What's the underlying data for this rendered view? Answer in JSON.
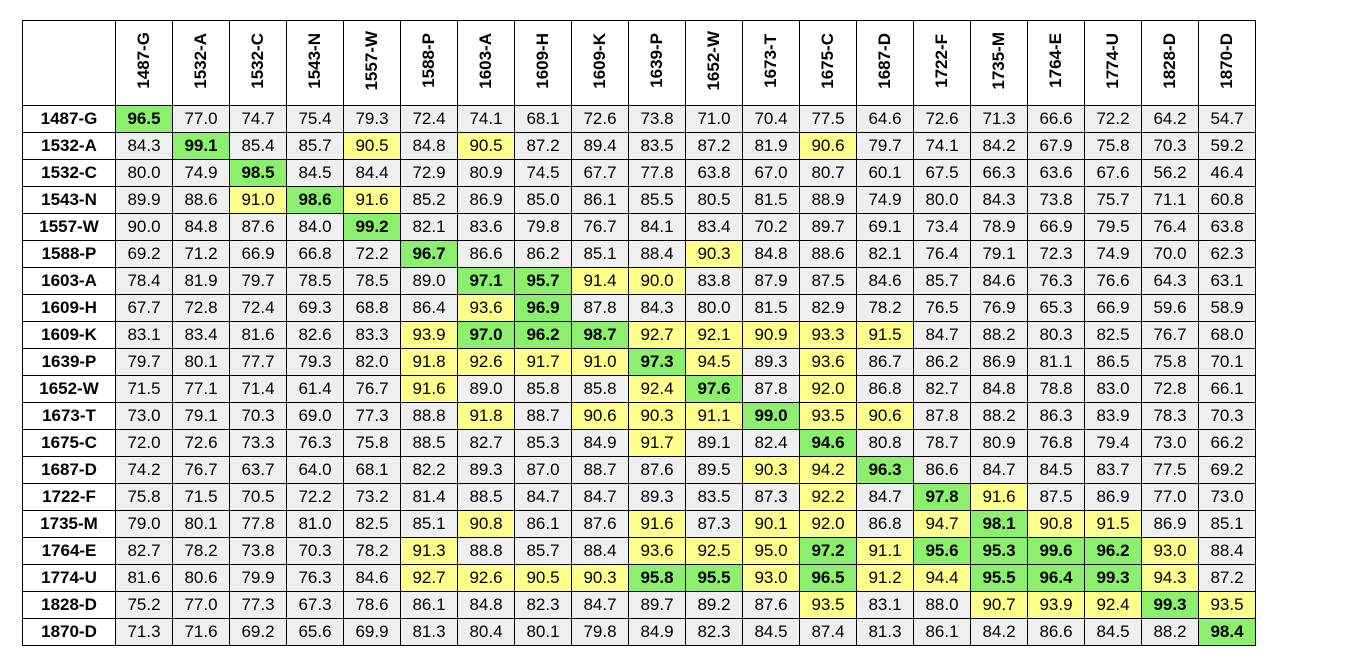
{
  "chart_data": {
    "type": "heatmap",
    "title": "",
    "columns": [
      "1487-G",
      "1532-A",
      "1532-C",
      "1543-N",
      "1557-W",
      "1588-P",
      "1603-A",
      "1609-H",
      "1609-K",
      "1639-P",
      "1652-W",
      "1673-T",
      "1675-C",
      "1687-D",
      "1722-F",
      "1735-M",
      "1764-E",
      "1774-U",
      "1828-D",
      "1870-D"
    ],
    "rows": [
      "1487-G",
      "1532-A",
      "1532-C",
      "1543-N",
      "1557-W",
      "1588-P",
      "1603-A",
      "1609-H",
      "1609-K",
      "1639-P",
      "1652-W",
      "1673-T",
      "1675-C",
      "1687-D",
      "1722-F",
      "1735-M",
      "1764-E",
      "1774-U",
      "1828-D",
      "1870-D"
    ],
    "values": [
      [
        "96.5",
        "77.0",
        "74.7",
        "75.4",
        "79.3",
        "72.4",
        "74.1",
        "68.1",
        "72.6",
        "73.8",
        "71.0",
        "70.4",
        "77.5",
        "64.6",
        "72.6",
        "71.3",
        "66.6",
        "72.2",
        "64.2",
        "54.7"
      ],
      [
        "84.3",
        "99.1",
        "85.4",
        "85.7",
        "90.5",
        "84.8",
        "90.5",
        "87.2",
        "89.4",
        "83.5",
        "87.2",
        "81.9",
        "90.6",
        "79.7",
        "74.1",
        "84.2",
        "67.9",
        "75.8",
        "70.3",
        "59.2"
      ],
      [
        "80.0",
        "74.9",
        "98.5",
        "84.5",
        "84.4",
        "72.9",
        "80.9",
        "74.5",
        "67.7",
        "77.8",
        "63.8",
        "67.0",
        "80.7",
        "60.1",
        "67.5",
        "66.3",
        "63.6",
        "67.6",
        "56.2",
        "46.4"
      ],
      [
        "89.9",
        "88.6",
        "91.0",
        "98.6",
        "91.6",
        "85.2",
        "86.9",
        "85.0",
        "86.1",
        "85.5",
        "80.5",
        "81.5",
        "88.9",
        "74.9",
        "80.0",
        "84.3",
        "73.8",
        "75.7",
        "71.1",
        "60.8"
      ],
      [
        "90.0",
        "84.8",
        "87.6",
        "84.0",
        "99.2",
        "82.1",
        "83.6",
        "79.8",
        "76.7",
        "84.1",
        "83.4",
        "70.2",
        "89.7",
        "69.1",
        "73.4",
        "78.9",
        "66.9",
        "79.5",
        "76.4",
        "63.8"
      ],
      [
        "69.2",
        "71.2",
        "66.9",
        "66.8",
        "72.2",
        "96.7",
        "86.6",
        "86.2",
        "85.1",
        "88.4",
        "90.3",
        "84.8",
        "88.6",
        "82.1",
        "76.4",
        "79.1",
        "72.3",
        "74.9",
        "70.0",
        "62.3"
      ],
      [
        "78.4",
        "81.9",
        "79.7",
        "78.5",
        "78.5",
        "89.0",
        "97.1",
        "95.7",
        "91.4",
        "90.0",
        "83.8",
        "87.9",
        "87.5",
        "84.6",
        "85.7",
        "84.6",
        "76.3",
        "76.6",
        "64.3",
        "63.1"
      ],
      [
        "67.7",
        "72.8",
        "72.4",
        "69.3",
        "68.8",
        "86.4",
        "93.6",
        "96.9",
        "87.8",
        "84.3",
        "80.0",
        "81.5",
        "82.9",
        "78.2",
        "76.5",
        "76.9",
        "65.3",
        "66.9",
        "59.6",
        "58.9"
      ],
      [
        "83.1",
        "83.4",
        "81.6",
        "82.6",
        "83.3",
        "93.9",
        "97.0",
        "96.2",
        "98.7",
        "92.7",
        "92.1",
        "90.9",
        "93.3",
        "91.5",
        "84.7",
        "88.2",
        "80.3",
        "82.5",
        "76.7",
        "68.0"
      ],
      [
        "79.7",
        "80.1",
        "77.7",
        "79.3",
        "82.0",
        "91.8",
        "92.6",
        "91.7",
        "91.0",
        "97.3",
        "94.5",
        "89.3",
        "93.6",
        "86.7",
        "86.2",
        "86.9",
        "81.1",
        "86.5",
        "75.8",
        "70.1"
      ],
      [
        "71.5",
        "77.1",
        "71.4",
        "61.4",
        "76.7",
        "91.6",
        "89.0",
        "85.8",
        "85.8",
        "92.4",
        "97.6",
        "87.8",
        "92.0",
        "86.8",
        "82.7",
        "84.8",
        "78.8",
        "83.0",
        "72.8",
        "66.1"
      ],
      [
        "73.0",
        "79.1",
        "70.3",
        "69.0",
        "77.3",
        "88.8",
        "91.8",
        "88.7",
        "90.6",
        "90.3",
        "91.1",
        "99.0",
        "93.5",
        "90.6",
        "87.8",
        "88.2",
        "86.3",
        "83.9",
        "78.3",
        "70.3"
      ],
      [
        "72.0",
        "72.6",
        "73.3",
        "76.3",
        "75.8",
        "88.5",
        "82.7",
        "85.3",
        "84.9",
        "91.7",
        "89.1",
        "82.4",
        "94.6",
        "80.8",
        "78.7",
        "80.9",
        "76.8",
        "79.4",
        "73.0",
        "66.2"
      ],
      [
        "74.2",
        "76.7",
        "63.7",
        "64.0",
        "68.1",
        "82.2",
        "89.3",
        "87.0",
        "88.7",
        "87.6",
        "89.5",
        "90.3",
        "94.2",
        "96.3",
        "86.6",
        "84.7",
        "84.5",
        "83.7",
        "77.5",
        "69.2"
      ],
      [
        "75.8",
        "71.5",
        "70.5",
        "72.2",
        "73.2",
        "81.4",
        "88.5",
        "84.7",
        "84.7",
        "89.3",
        "83.5",
        "87.3",
        "92.2",
        "84.7",
        "97.8",
        "91.6",
        "87.5",
        "86.9",
        "77.0",
        "73.0"
      ],
      [
        "79.0",
        "80.1",
        "77.8",
        "81.0",
        "82.5",
        "85.1",
        "90.8",
        "86.1",
        "87.6",
        "91.6",
        "87.3",
        "90.1",
        "92.0",
        "86.8",
        "94.7",
        "98.1",
        "90.8",
        "91.5",
        "86.9",
        "85.1"
      ],
      [
        "82.7",
        "78.2",
        "73.8",
        "70.3",
        "78.2",
        "91.3",
        "88.8",
        "85.7",
        "88.4",
        "93.6",
        "92.5",
        "95.0",
        "97.2",
        "91.1",
        "95.6",
        "95.3",
        "99.6",
        "96.2",
        "93.0",
        "88.4"
      ],
      [
        "81.6",
        "80.6",
        "79.9",
        "76.3",
        "84.6",
        "92.7",
        "92.6",
        "90.5",
        "90.3",
        "95.8",
        "95.5",
        "93.0",
        "96.5",
        "91.2",
        "94.4",
        "95.5",
        "96.4",
        "99.3",
        "94.3",
        "87.2"
      ],
      [
        "75.2",
        "77.0",
        "77.3",
        "67.3",
        "78.6",
        "86.1",
        "84.8",
        "82.3",
        "84.7",
        "89.7",
        "89.2",
        "87.6",
        "93.5",
        "83.1",
        "88.0",
        "90.7",
        "93.9",
        "92.4",
        "99.3",
        "93.5"
      ],
      [
        "71.3",
        "71.6",
        "69.2",
        "65.6",
        "69.9",
        "81.3",
        "80.4",
        "80.1",
        "79.8",
        "84.9",
        "82.3",
        "84.5",
        "87.4",
        "81.3",
        "86.1",
        "84.2",
        "86.6",
        "84.5",
        "88.2",
        "98.4"
      ]
    ],
    "colors": {
      "default": "#efefef",
      "yellow": "#ffff8c",
      "green": "#8cf06e"
    },
    "green_cells": [
      [
        0,
        0
      ],
      [
        1,
        1
      ],
      [
        2,
        2
      ],
      [
        3,
        3
      ],
      [
        4,
        4
      ],
      [
        5,
        5
      ],
      [
        6,
        6
      ],
      [
        6,
        7
      ],
      [
        7,
        7
      ],
      [
        8,
        6
      ],
      [
        8,
        7
      ],
      [
        8,
        8
      ],
      [
        9,
        9
      ],
      [
        10,
        10
      ],
      [
        11,
        11
      ],
      [
        12,
        12
      ],
      [
        13,
        13
      ],
      [
        14,
        14
      ],
      [
        15,
        15
      ],
      [
        16,
        12
      ],
      [
        16,
        14
      ],
      [
        16,
        15
      ],
      [
        16,
        16
      ],
      [
        16,
        17
      ],
      [
        17,
        9
      ],
      [
        17,
        10
      ],
      [
        17,
        12
      ],
      [
        17,
        15
      ],
      [
        17,
        16
      ],
      [
        17,
        17
      ],
      [
        18,
        18
      ],
      [
        19,
        19
      ]
    ],
    "yellow_cells": [
      [
        1,
        4
      ],
      [
        1,
        6
      ],
      [
        1,
        12
      ],
      [
        3,
        2
      ],
      [
        3,
        4
      ],
      [
        5,
        10
      ],
      [
        6,
        8
      ],
      [
        6,
        9
      ],
      [
        7,
        6
      ],
      [
        8,
        5
      ],
      [
        8,
        9
      ],
      [
        8,
        10
      ],
      [
        8,
        11
      ],
      [
        8,
        12
      ],
      [
        8,
        13
      ],
      [
        9,
        5
      ],
      [
        9,
        6
      ],
      [
        9,
        7
      ],
      [
        9,
        8
      ],
      [
        9,
        10
      ],
      [
        9,
        12
      ],
      [
        10,
        5
      ],
      [
        10,
        9
      ],
      [
        10,
        12
      ],
      [
        11,
        6
      ],
      [
        11,
        8
      ],
      [
        11,
        9
      ],
      [
        11,
        10
      ],
      [
        11,
        12
      ],
      [
        11,
        13
      ],
      [
        12,
        9
      ],
      [
        12,
        12
      ],
      [
        13,
        11
      ],
      [
        13,
        12
      ],
      [
        14,
        12
      ],
      [
        14,
        15
      ],
      [
        15,
        6
      ],
      [
        15,
        9
      ],
      [
        15,
        11
      ],
      [
        15,
        12
      ],
      [
        15,
        14
      ],
      [
        15,
        16
      ],
      [
        15,
        17
      ],
      [
        16,
        5
      ],
      [
        16,
        9
      ],
      [
        16,
        10
      ],
      [
        16,
        11
      ],
      [
        16,
        13
      ],
      [
        16,
        18
      ],
      [
        17,
        5
      ],
      [
        17,
        6
      ],
      [
        17,
        7
      ],
      [
        17,
        8
      ],
      [
        17,
        11
      ],
      [
        17,
        13
      ],
      [
        17,
        14
      ],
      [
        17,
        18
      ],
      [
        18,
        12
      ],
      [
        18,
        15
      ],
      [
        18,
        16
      ],
      [
        18,
        17
      ],
      [
        18,
        19
      ]
    ],
    "bold_cells": [
      [
        16,
        15
      ],
      [
        16,
        17
      ],
      [
        17,
        10
      ],
      [
        17,
        15
      ],
      [
        17,
        16
      ]
    ]
  }
}
